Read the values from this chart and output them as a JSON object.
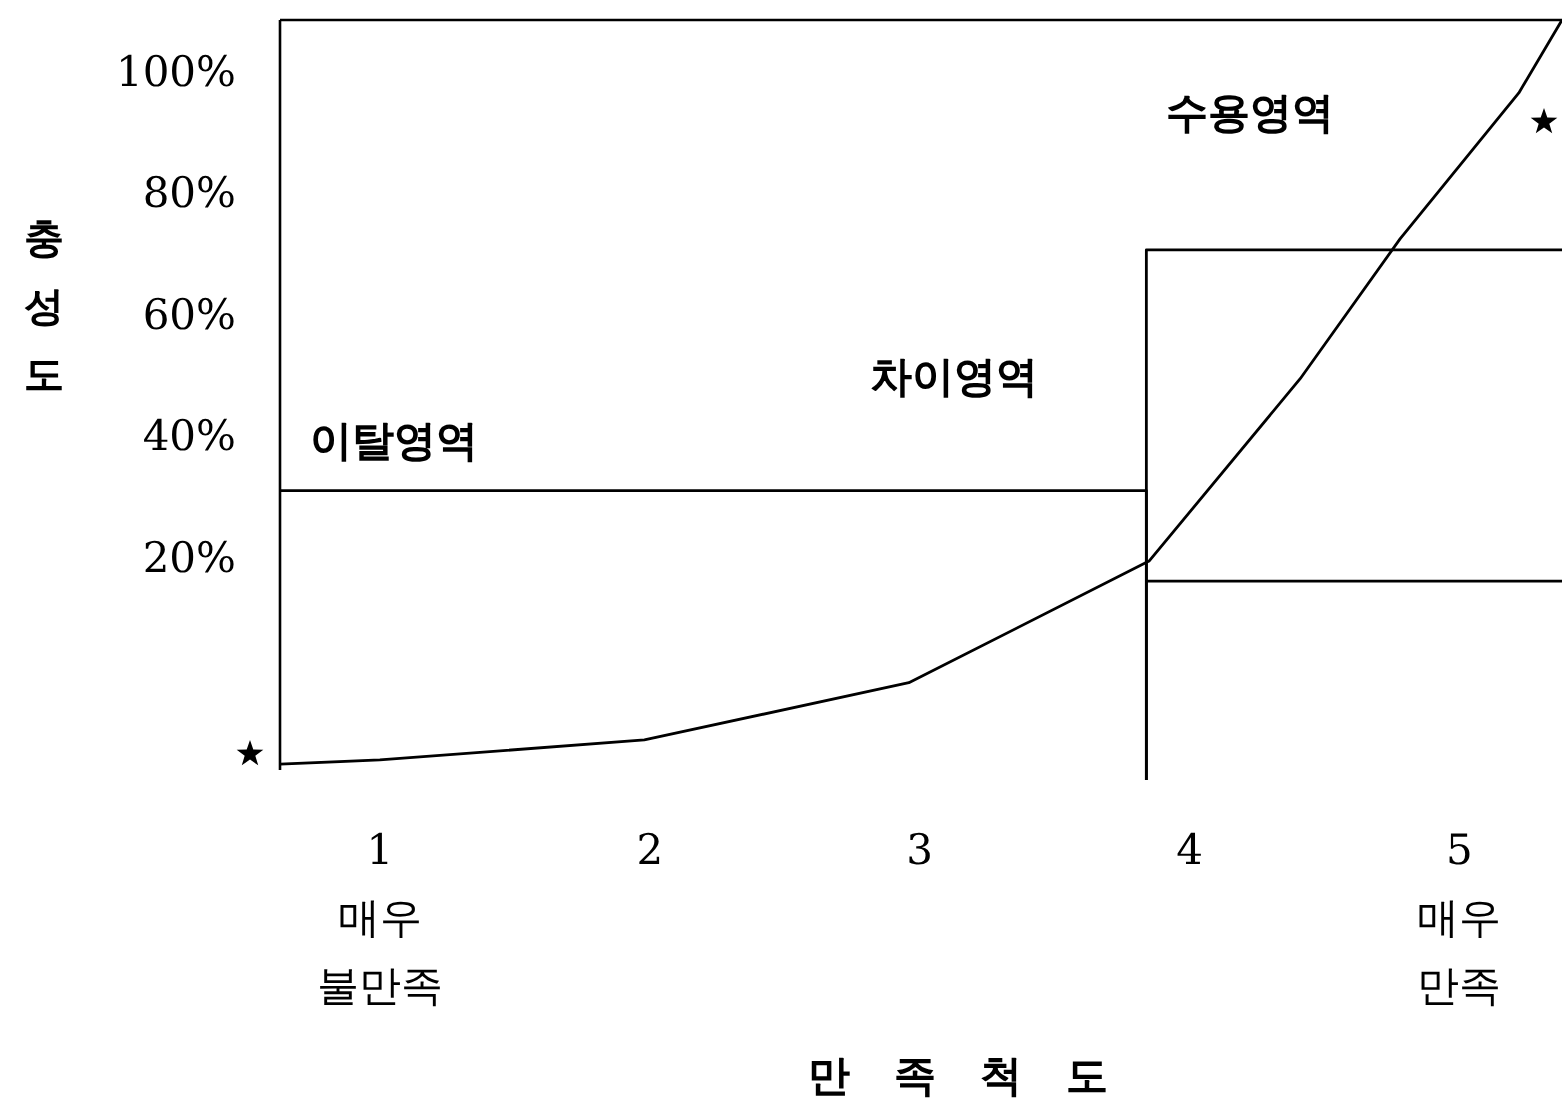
{
  "chart_data": {
    "type": "line",
    "xlabel": "만족척도",
    "ylabel": "충성도",
    "xlim": [
      0.63,
      5.38
    ],
    "ylim": [
      -16,
      109
    ],
    "xticks": [
      {
        "value": 1,
        "label": "1\n매우\n불만족"
      },
      {
        "value": 2,
        "label": "2"
      },
      {
        "value": 3,
        "label": "3"
      },
      {
        "value": 4,
        "label": "4"
      },
      {
        "value": 5,
        "label": "5\n매우\n만족"
      }
    ],
    "yticks": [
      {
        "value": 20,
        "label": "20%"
      },
      {
        "value": 40,
        "label": "40%"
      },
      {
        "value": 60,
        "label": "60%"
      },
      {
        "value": 80,
        "label": "80%"
      },
      {
        "value": 100,
        "label": "100%"
      }
    ],
    "grid": false,
    "line_style": "solid",
    "series": [
      {
        "color": "#000000",
        "x": [
          0.63,
          1,
          1.98,
          2.96,
          3.85,
          4.41,
          4.78,
          5.22,
          5.38
        ],
        "values": [
          -13.4,
          -12.7,
          -9.4,
          0,
          20,
          50,
          73,
          97,
          109
        ]
      },
      {
        "color": "#000000",
        "x": [
          0.63,
          3.84,
          3.84
        ],
        "values": [
          31.6,
          31.6,
          -16
        ]
      },
      {
        "color": "#000000",
        "x": [
          3.84,
          3.84,
          5.38
        ],
        "values": [
          -16,
          71.2,
          71.2
        ]
      },
      {
        "color": "#000000",
        "x": [
          3.84,
          5.38
        ],
        "values": [
          16.7,
          16.7
        ]
      }
    ],
    "annotations": [
      "이탈영역",
      "차이영역",
      "수용영역"
    ]
  }
}
